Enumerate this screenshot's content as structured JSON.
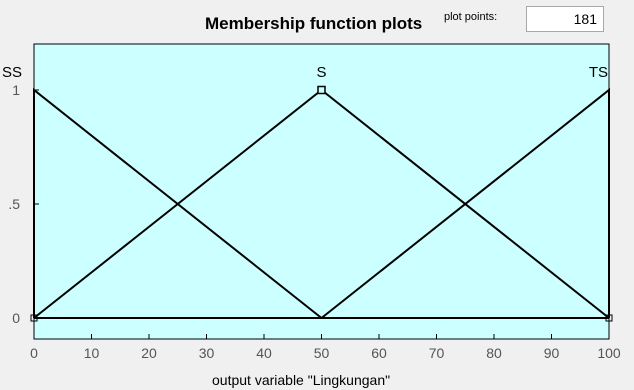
{
  "header": {
    "title": "Membership function plots",
    "plot_points_label": "plot points:",
    "plot_points_value": "181"
  },
  "chart_data": {
    "type": "line",
    "xlabel": "output variable \"Lingkungan\"",
    "xlim": [
      0,
      100
    ],
    "ylim": [
      0,
      1
    ],
    "x_ticks": [
      "0",
      "10",
      "20",
      "30",
      "40",
      "50",
      "60",
      "70",
      "80",
      "90",
      "100"
    ],
    "y_ticks": [
      {
        "value": 0,
        "label": "0"
      },
      {
        "value": 0.5,
        "label": ".5"
      },
      {
        "value": 1,
        "label": "1"
      }
    ],
    "background": "#ccffff",
    "line_color": "#000000",
    "series": [
      {
        "name": "SS",
        "x": [
          0,
          0,
          50
        ],
        "y": [
          0,
          1,
          0
        ]
      },
      {
        "name": "S",
        "x": [
          0,
          50,
          100
        ],
        "y": [
          0,
          1,
          0
        ]
      },
      {
        "name": "TS",
        "x": [
          50,
          100,
          100
        ],
        "y": [
          0,
          1,
          0
        ]
      }
    ],
    "series_labels": [
      {
        "text": "SS",
        "x": 0,
        "anchor": "start"
      },
      {
        "text": "S",
        "x": 50,
        "anchor": "middle"
      },
      {
        "text": "TS",
        "x": 100,
        "anchor": "end"
      }
    ],
    "selected_point": {
      "x": 50,
      "y": 1
    }
  }
}
